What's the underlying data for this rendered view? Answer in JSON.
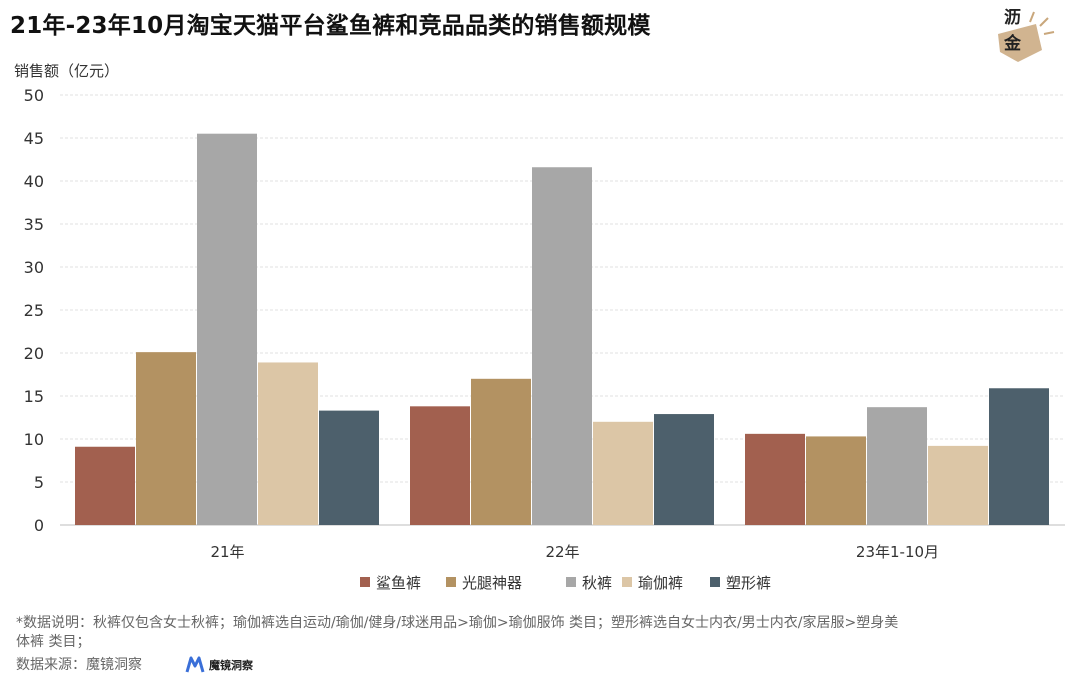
{
  "title": "21年-23年10月淘宝天猫平台鲨鱼裤和竞品品类的销售额规模",
  "logo_text": [
    "沥",
    "金"
  ],
  "footnote_line1": "*数据说明：秋裤仅包含女士秋裤；瑜伽裤选自运动/瑜伽/健身/球迷用品>瑜伽>瑜伽服饰 类目；塑形裤选自女士内衣/男士内衣/家居服>塑身美",
  "footnote_line2": "体裤 类目；",
  "source_label": "数据来源：魔镜洞察",
  "source_logo_text": "魔镜洞察",
  "colors": {
    "鲨鱼裤": "#a2604f",
    "光腿神器": "#b39262",
    "秋裤": "#a7a7a7",
    "瑜伽裤": "#dcc6a6",
    "塑形裤": "#4d606c"
  },
  "chart_data": {
    "type": "bar",
    "ylabel": "销售额（亿元）",
    "xlabel": "",
    "categories": [
      "21年",
      "22年",
      "23年1-10月"
    ],
    "ylim": [
      0,
      50
    ],
    "yticks": [
      0,
      5,
      10,
      15,
      20,
      25,
      30,
      35,
      40,
      45,
      50
    ],
    "grid": true,
    "legend_position": "bottom",
    "series": [
      {
        "name": "鲨鱼裤",
        "values": [
          9.1,
          13.8,
          10.6
        ]
      },
      {
        "name": "光腿神器",
        "values": [
          20.1,
          17.0,
          10.3
        ]
      },
      {
        "name": "秋裤",
        "values": [
          45.5,
          41.6,
          13.7
        ]
      },
      {
        "name": "瑜伽裤",
        "values": [
          18.9,
          12.0,
          9.2
        ]
      },
      {
        "name": "塑形裤",
        "values": [
          13.3,
          12.9,
          15.9
        ]
      }
    ]
  }
}
